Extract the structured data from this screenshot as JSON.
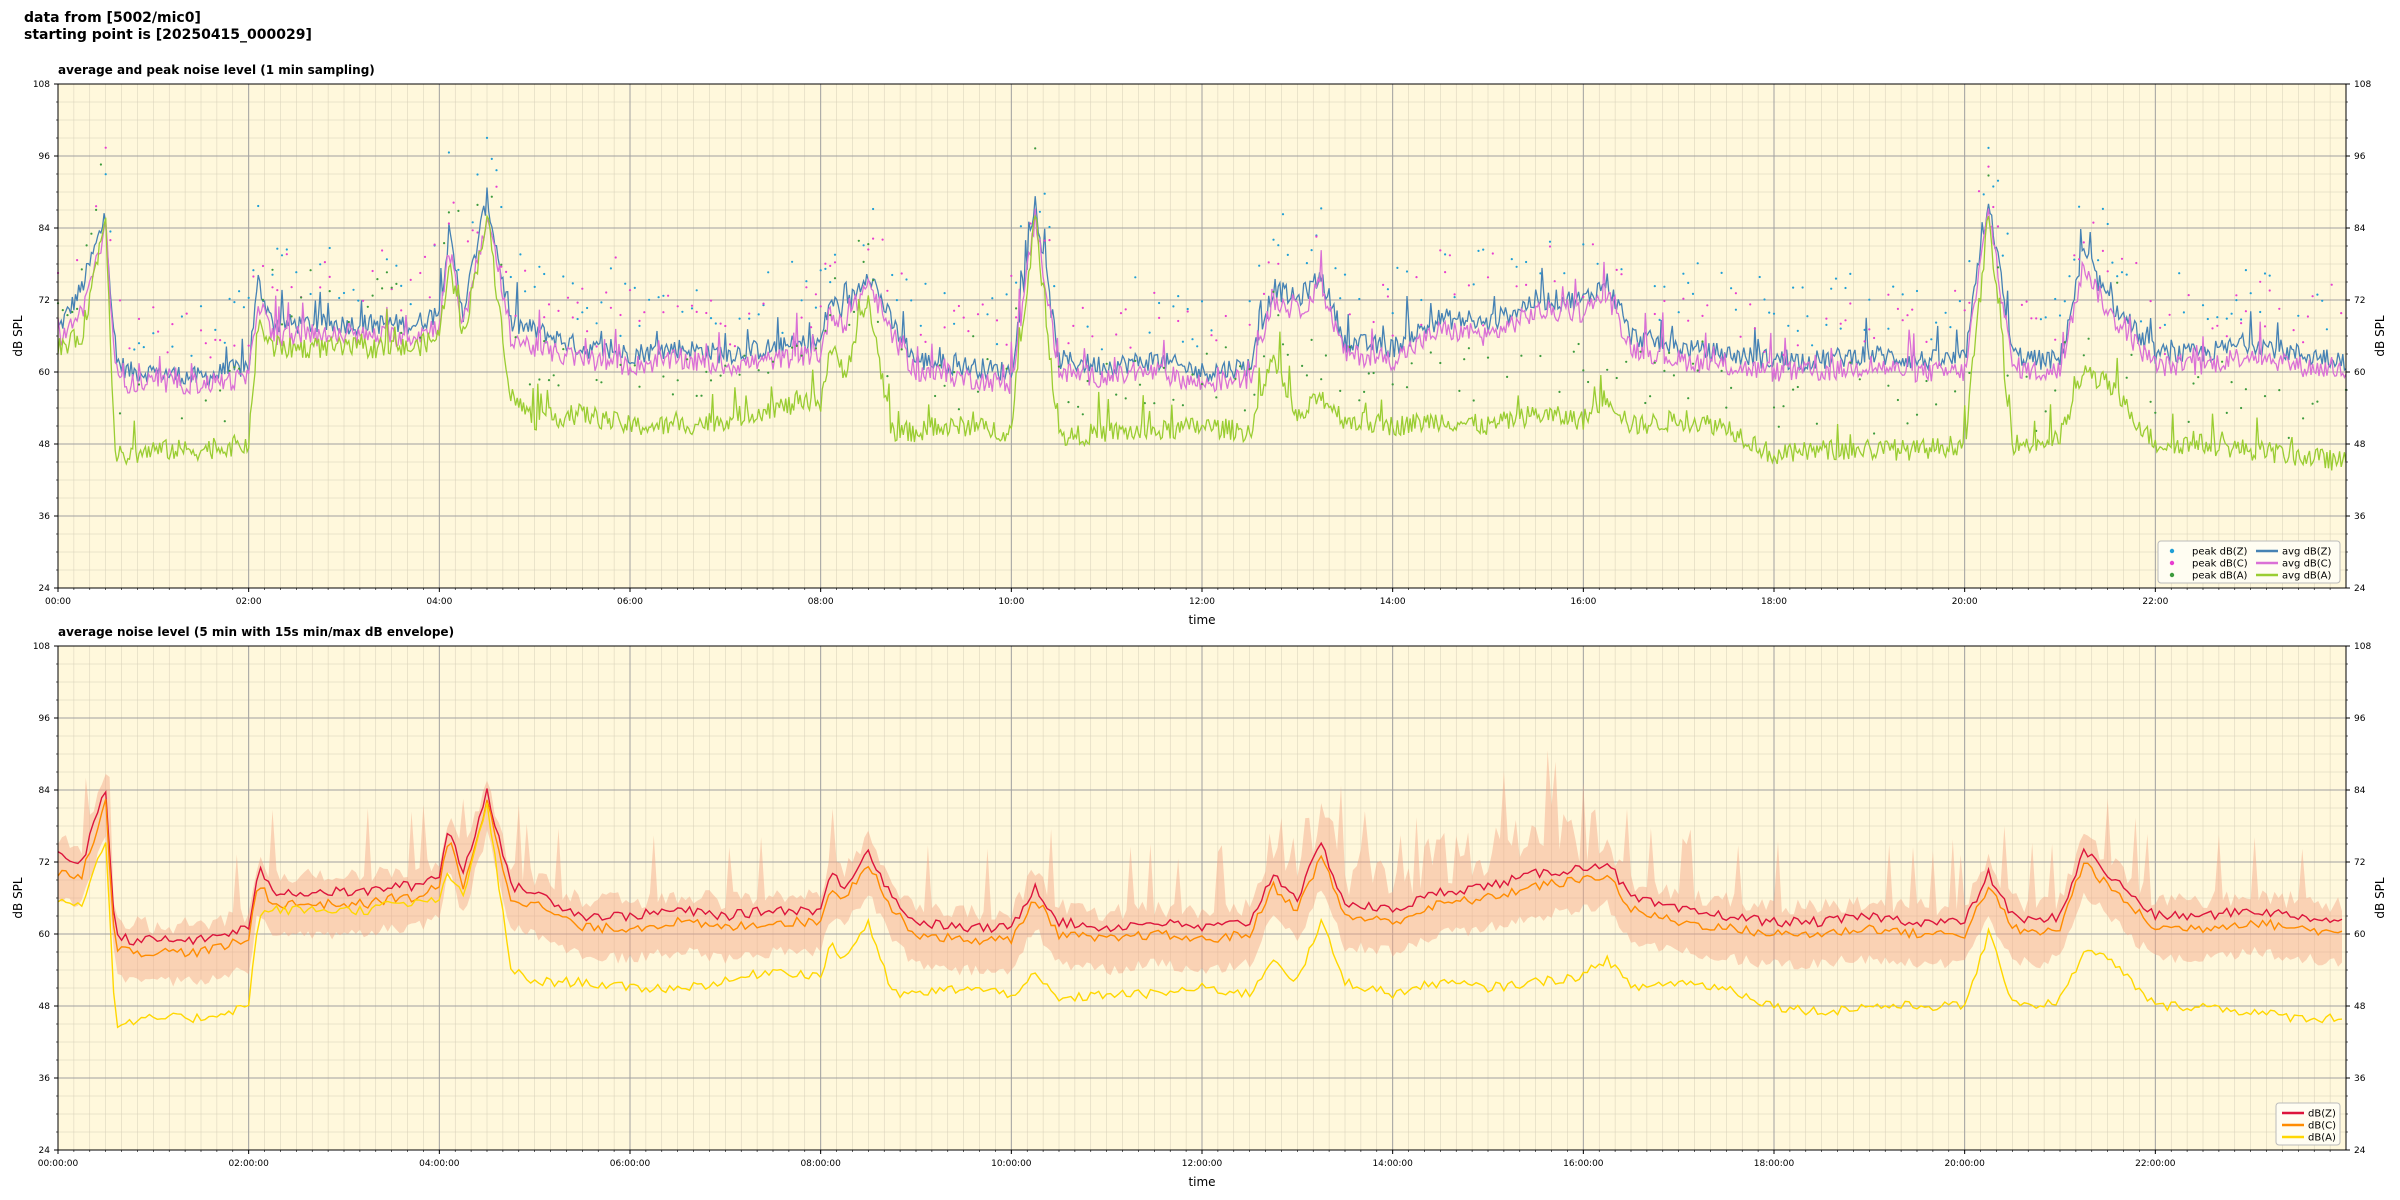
{
  "header": {
    "line1": "data from [5002/mic0]",
    "line2": "starting point is [20250415_000029]"
  },
  "colors": {
    "background": "#fff8dc",
    "peak_z": "#1f9fd6",
    "peak_c": "#e83ed0",
    "peak_a": "#3d9b3d",
    "avg_z": "#4682b4",
    "avg_c": "#da70d6",
    "avg_a": "#9acd32",
    "env_z": "#dc143c",
    "env_c": "#ff8c00",
    "env_a": "#ffd700",
    "envelope_fill": "#f4a582"
  },
  "chart_data": [
    {
      "type": "line",
      "title": "average and peak noise level (1 min sampling)",
      "xlabel": "time",
      "ylabel": "dB SPL",
      "xlim": [
        0,
        24
      ],
      "ylim": [
        24,
        108
      ],
      "y_ticks": [
        24,
        36,
        48,
        60,
        72,
        84,
        96,
        108
      ],
      "x_tick_labels": [
        "00:00",
        "02:00",
        "04:00",
        "06:00",
        "08:00",
        "10:00",
        "12:00",
        "14:00",
        "16:00",
        "18:00",
        "20:00",
        "22:00"
      ],
      "grid": true,
      "legend_position": "bottom-right",
      "legend": [
        "peak dB(Z)",
        "peak dB(C)",
        "peak dB(A)",
        "avg dB(Z)",
        "avg dB(C)",
        "avg dB(A)"
      ],
      "x": [
        0,
        0.25,
        0.5,
        0.6,
        0.75,
        1,
        1.5,
        2,
        2.1,
        2.25,
        2.5,
        3,
        3.25,
        3.5,
        3.75,
        4,
        4.1,
        4.25,
        4.5,
        4.75,
        5,
        5.5,
        6,
        6.5,
        7,
        7.5,
        8,
        8.1,
        8.25,
        8.5,
        8.75,
        9,
        9.5,
        10,
        10.25,
        10.5,
        11,
        11.5,
        12,
        12.5,
        12.75,
        13,
        13.25,
        13.5,
        14,
        14.5,
        15,
        15.5,
        16,
        16.25,
        16.5,
        17,
        17.5,
        18,
        18.5,
        19,
        19.5,
        20,
        20.25,
        20.5,
        20.75,
        21,
        21.25,
        21.5,
        22,
        22.5,
        23,
        23.5,
        24
      ],
      "series": [
        {
          "name": "avg dB(Z)",
          "values": [
            67,
            74,
            86,
            62,
            60,
            60,
            59,
            61,
            75,
            68,
            68,
            68,
            68,
            68,
            68,
            70,
            83,
            70,
            89,
            68,
            67,
            64,
            63,
            64,
            63,
            64,
            65,
            72,
            70,
            77,
            68,
            62,
            61,
            60,
            88,
            62,
            61,
            62,
            60,
            61,
            74,
            72,
            76,
            65,
            64,
            69,
            68,
            72,
            72,
            75,
            66,
            64,
            63,
            62,
            62,
            63,
            62,
            62,
            89,
            63,
            62,
            62,
            80,
            72,
            63,
            63,
            65,
            63,
            62
          ]
        },
        {
          "name": "avg dB(C)",
          "values": [
            65,
            70,
            84,
            60,
            58,
            58,
            58,
            59,
            72,
            66,
            66,
            66,
            66,
            66,
            66,
            68,
            80,
            68,
            86,
            66,
            64,
            62,
            61,
            62,
            61,
            62,
            63,
            70,
            68,
            75,
            66,
            60,
            59,
            58,
            86,
            60,
            59,
            60,
            58,
            59,
            72,
            70,
            74,
            63,
            62,
            67,
            66,
            70,
            70,
            73,
            64,
            62,
            61,
            60,
            60,
            61,
            60,
            60,
            87,
            61,
            60,
            60,
            78,
            70,
            61,
            61,
            63,
            61,
            60
          ]
        },
        {
          "name": "avg dB(A)",
          "values": [
            64,
            66,
            86,
            46,
            46,
            47,
            47,
            48,
            68,
            64,
            64,
            64,
            64,
            64,
            64,
            66,
            78,
            66,
            86,
            56,
            52,
            53,
            51,
            51,
            52,
            54,
            55,
            64,
            60,
            72,
            50,
            50,
            51,
            50,
            86,
            49,
            50,
            50,
            51,
            50,
            62,
            52,
            56,
            52,
            51,
            52,
            51,
            53,
            52,
            56,
            51,
            52,
            51,
            46,
            47,
            47,
            47,
            48,
            86,
            48,
            48,
            49,
            60,
            58,
            48,
            48,
            47,
            46,
            45
          ]
        }
      ]
    },
    {
      "type": "line",
      "title": "average noise level (5 min with 15s min/max dB envelope)",
      "xlabel": "time",
      "ylabel": "dB SPL",
      "xlim": [
        0,
        24
      ],
      "ylim": [
        24,
        108
      ],
      "y_ticks": [
        24,
        36,
        48,
        60,
        72,
        84,
        96,
        108
      ],
      "x_tick_labels": [
        "00:00:00",
        "02:00:00",
        "04:00:00",
        "06:00:00",
        "08:00:00",
        "10:00:00",
        "12:00:00",
        "14:00:00",
        "16:00:00",
        "18:00:00",
        "20:00:00",
        "22:00:00"
      ],
      "grid": true,
      "legend_position": "bottom-right",
      "legend": [
        "dB(Z)",
        "dB(C)",
        "dB(A)"
      ],
      "x": [
        0,
        0.25,
        0.5,
        0.6,
        0.75,
        1,
        1.5,
        2,
        2.1,
        2.25,
        2.5,
        3,
        3.25,
        3.5,
        3.75,
        4,
        4.1,
        4.25,
        4.5,
        4.75,
        5,
        5.5,
        6,
        6.5,
        7,
        7.5,
        8,
        8.1,
        8.25,
        8.5,
        8.75,
        9,
        9.5,
        10,
        10.25,
        10.5,
        11,
        11.5,
        12,
        12.5,
        12.75,
        13,
        13.25,
        13.5,
        14,
        14.5,
        15,
        15.5,
        16,
        16.25,
        16.5,
        17,
        17.5,
        18,
        18.5,
        19,
        19.5,
        20,
        20.25,
        20.5,
        20.75,
        21,
        21.25,
        21.5,
        22,
        22.5,
        23,
        23.5,
        24
      ],
      "series": [
        {
          "name": "dB(Z)",
          "values": [
            73,
            72,
            84,
            60,
            59,
            59,
            59,
            61,
            71,
            67,
            67,
            67,
            67,
            68,
            68,
            70,
            78,
            70,
            84,
            68,
            67,
            63,
            63,
            64,
            63,
            64,
            64,
            70,
            68,
            74,
            66,
            62,
            61,
            61,
            68,
            62,
            61,
            62,
            61,
            62,
            70,
            66,
            75,
            65,
            64,
            67,
            68,
            70,
            71,
            72,
            66,
            64,
            63,
            62,
            62,
            63,
            62,
            62,
            70,
            63,
            62,
            63,
            74,
            70,
            63,
            63,
            64,
            63,
            62
          ]
        },
        {
          "name": "dB(C)",
          "values": [
            70,
            70,
            82,
            58,
            57,
            57,
            57,
            59,
            69,
            65,
            65,
            65,
            65,
            66,
            66,
            68,
            76,
            68,
            82,
            66,
            65,
            61,
            61,
            62,
            61,
            62,
            62,
            68,
            66,
            72,
            64,
            60,
            59,
            59,
            66,
            60,
            59,
            60,
            59,
            60,
            68,
            64,
            73,
            63,
            62,
            65,
            66,
            68,
            69,
            70,
            64,
            62,
            61,
            60,
            60,
            61,
            60,
            60,
            68,
            61,
            60,
            61,
            72,
            68,
            61,
            61,
            62,
            61,
            60
          ]
        },
        {
          "name": "dB(A)",
          "values": [
            66,
            65,
            76,
            45,
            45,
            46,
            46,
            48,
            63,
            64,
            64,
            64,
            64,
            65,
            65,
            66,
            70,
            66,
            82,
            54,
            52,
            52,
            51,
            51,
            52,
            54,
            53,
            58,
            56,
            62,
            50,
            50,
            51,
            50,
            53,
            49,
            50,
            50,
            51,
            50,
            56,
            52,
            62,
            52,
            50,
            52,
            51,
            52,
            53,
            56,
            51,
            52,
            51,
            48,
            47,
            48,
            48,
            48,
            60,
            49,
            48,
            49,
            57,
            56,
            48,
            48,
            47,
            46,
            46
          ]
        }
      ]
    }
  ]
}
